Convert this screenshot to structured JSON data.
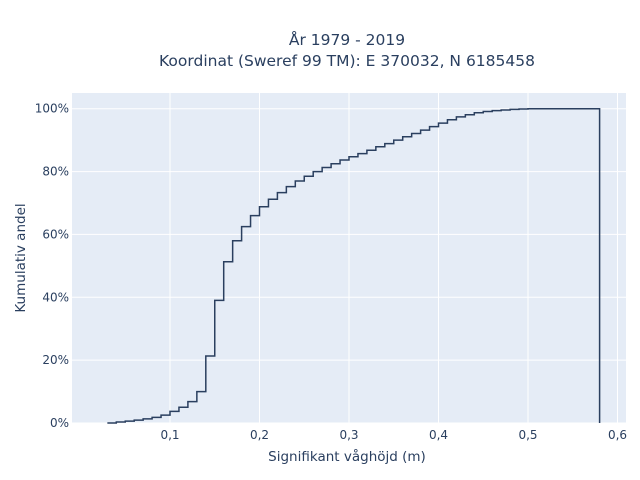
{
  "chart_data": {
    "type": "line",
    "line_shape": "step",
    "title": "År 1979 - 2019",
    "subtitle": "Koordinat (Sweref 99 TM): E 370032, N 6185458",
    "xlabel": "Signifikant våghöjd (m)",
    "ylabel": "Kumulativ andel",
    "xlim": [
      -0.0095,
      0.6095
    ],
    "ylim": [
      0,
      1.05
    ],
    "x_ticks": [
      0.1,
      0.2,
      0.3,
      0.4,
      0.5,
      0.6
    ],
    "x_tick_labels": [
      "0,1",
      "0,2",
      "0,3",
      "0,4",
      "0,5",
      "0,6"
    ],
    "y_ticks": [
      0,
      0.2,
      0.4,
      0.6,
      0.8,
      1.0
    ],
    "y_tick_labels": [
      "0%",
      "20%",
      "40%",
      "60%",
      "80%",
      "100%"
    ],
    "grid": true,
    "legend": false,
    "background": "#e5ecf6",
    "line_color": "#2a3f5f",
    "series": [
      {
        "x": [
          0.03,
          0.04,
          0.05,
          0.06,
          0.07,
          0.08,
          0.09,
          0.1,
          0.11,
          0.12,
          0.13,
          0.14,
          0.15,
          0.16,
          0.17,
          0.18,
          0.19,
          0.2,
          0.21,
          0.22,
          0.23,
          0.24,
          0.25,
          0.26,
          0.27,
          0.28,
          0.29,
          0.3,
          0.31,
          0.32,
          0.33,
          0.34,
          0.35,
          0.36,
          0.37,
          0.38,
          0.39,
          0.4,
          0.41,
          0.42,
          0.43,
          0.44,
          0.45,
          0.46,
          0.47,
          0.48,
          0.49,
          0.5,
          0.51,
          0.52,
          0.53,
          0.54,
          0.55,
          0.56,
          0.57,
          0.58
        ],
        "y": [
          0.0,
          0.003,
          0.006,
          0.009,
          0.013,
          0.018,
          0.025,
          0.037,
          0.05,
          0.068,
          0.1,
          0.213,
          0.39,
          0.513,
          0.58,
          0.625,
          0.66,
          0.688,
          0.712,
          0.733,
          0.752,
          0.77,
          0.785,
          0.8,
          0.813,
          0.825,
          0.837,
          0.847,
          0.857,
          0.868,
          0.879,
          0.889,
          0.9,
          0.911,
          0.921,
          0.932,
          0.943,
          0.954,
          0.965,
          0.974,
          0.981,
          0.987,
          0.991,
          0.994,
          0.996,
          0.998,
          0.999,
          1.0,
          1.0,
          1.0,
          1.0,
          1.0,
          1.0,
          1.0,
          1.0,
          0.0
        ]
      }
    ]
  }
}
